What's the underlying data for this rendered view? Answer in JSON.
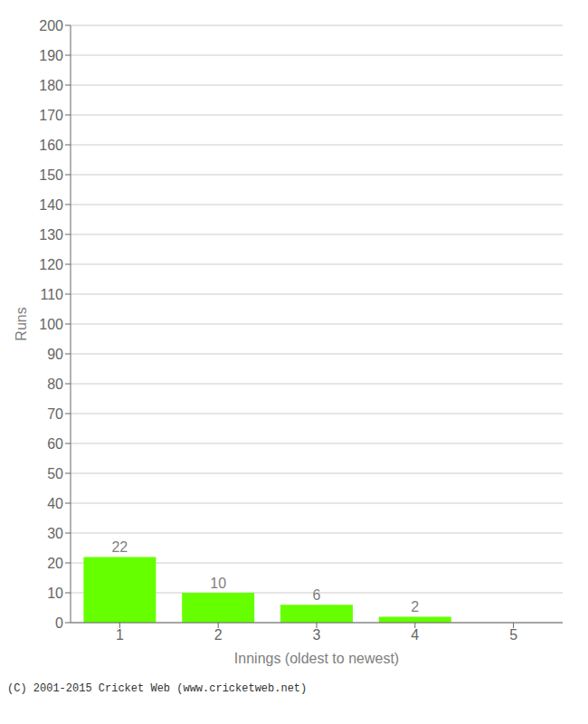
{
  "chart_data": {
    "type": "bar",
    "categories": [
      "1",
      "2",
      "3",
      "4",
      "5"
    ],
    "values": [
      22,
      10,
      6,
      2,
      0
    ],
    "color": "#66ff00",
    "xlabel": "Innings (oldest to newest)",
    "ylabel": "Runs",
    "ylim": [
      0,
      200
    ],
    "yticks": [
      0,
      10,
      20,
      30,
      40,
      50,
      60,
      70,
      80,
      90,
      100,
      110,
      120,
      130,
      140,
      150,
      160,
      170,
      180,
      190,
      200
    ],
    "grid": true,
    "data_labels": true,
    "annotations": [
      "(C) 2001-2015 Cricket Web (www.cricketweb.net)"
    ]
  }
}
